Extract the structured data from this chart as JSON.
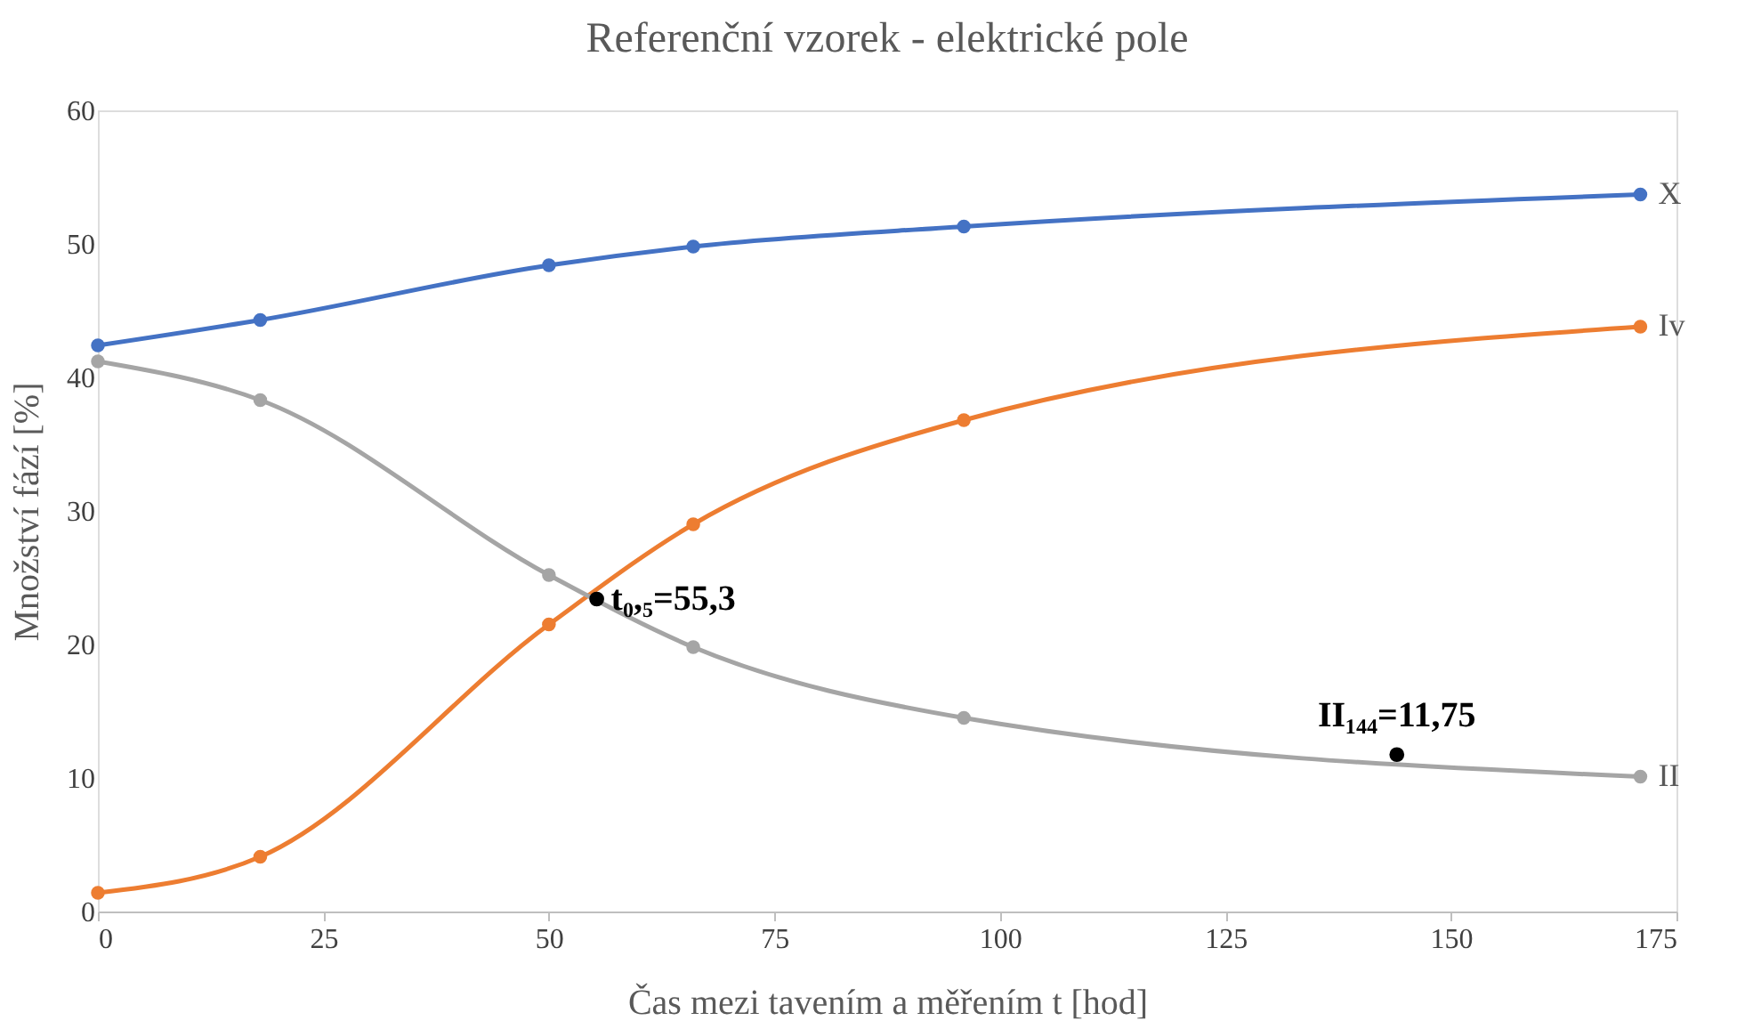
{
  "chart_data": {
    "type": "line",
    "title": "Referenční vzorek - elektrické pole",
    "xlabel": "Čas mezi tavením a měřením t [hod]",
    "ylabel": "Množství fází [%]",
    "xlim": [
      0,
      175
    ],
    "xticks": [
      0,
      25,
      50,
      75,
      100,
      125,
      150,
      175
    ],
    "ylim": [
      0,
      60
    ],
    "yticks": [
      0,
      10,
      20,
      30,
      40,
      50,
      60
    ],
    "grid": false,
    "marker": "circle",
    "line_style": "solid",
    "x": [
      0,
      18,
      50,
      66,
      96,
      171
    ],
    "series": [
      {
        "name": "X",
        "color": "#4472c4",
        "values": [
          42.4,
          44.3,
          48.4,
          49.8,
          51.3,
          53.7
        ]
      },
      {
        "name": "Iv",
        "color": "#ed7d31",
        "values": [
          1.4,
          4.1,
          21.5,
          29.0,
          36.8,
          43.8
        ]
      },
      {
        "name": "II",
        "color": "#a5a5a5",
        "values": [
          41.2,
          38.3,
          25.2,
          19.8,
          14.5,
          10.1
        ]
      },
      {
        "type": "scatter",
        "color": "#000000",
        "x": [
          55.3,
          144
        ],
        "values": [
          23.4,
          11.75
        ]
      }
    ],
    "annotations": [
      {
        "text": "t₀,₅=55,3",
        "x": 55.3,
        "y": 23.4
      },
      {
        "text": "II₁₄₄=11,75",
        "x": 144,
        "y": 11.75
      }
    ]
  }
}
